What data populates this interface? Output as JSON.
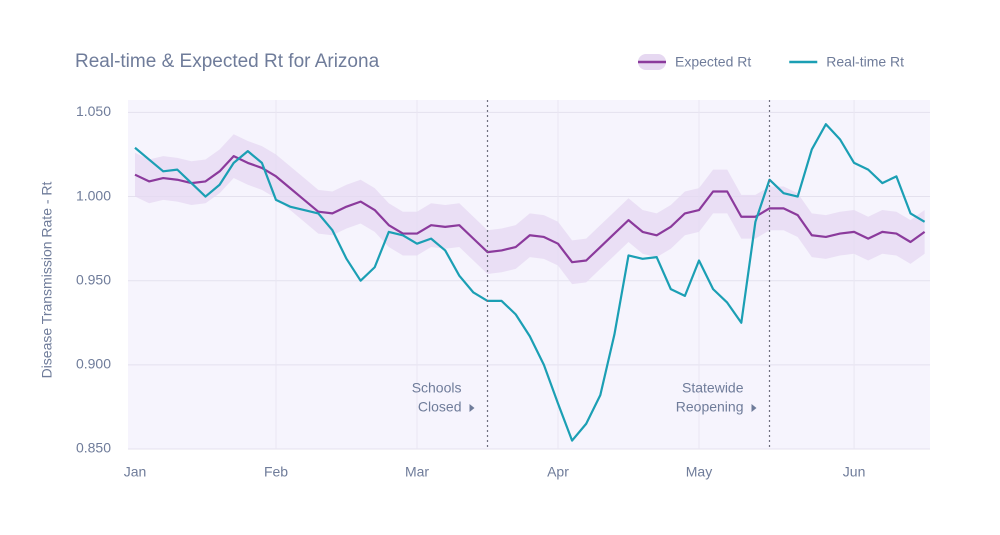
{
  "chart_data": {
    "type": "line",
    "title": "Real-time & Expected Rt for Arizona",
    "y_label": "Disease Transmission Rate - Rt",
    "categories": [
      "Jan",
      null,
      null,
      null,
      null,
      null,
      null,
      null,
      null,
      null,
      "Feb",
      null,
      null,
      null,
      null,
      null,
      null,
      null,
      null,
      null,
      "Mar",
      null,
      null,
      null,
      null,
      null,
      null,
      null,
      null,
      null,
      "Apr",
      null,
      null,
      null,
      null,
      null,
      null,
      null,
      null,
      null,
      "May",
      null,
      null,
      null,
      null,
      null,
      null,
      null,
      null,
      null,
      null,
      "Jun",
      null,
      null,
      null,
      null,
      null
    ],
    "series": [
      {
        "name": "Expected Rt",
        "color": "#8b3a9c",
        "band_color": "#e6d8f1",
        "values": [
          1.013,
          1.009,
          1.011,
          1.01,
          1.008,
          1.009,
          1.015,
          1.024,
          1.02,
          1.017,
          1.012,
          1.005,
          0.998,
          0.991,
          0.99,
          0.994,
          0.997,
          0.992,
          0.983,
          0.978,
          0.978,
          0.983,
          0.982,
          0.983,
          0.975,
          0.967,
          0.968,
          0.97,
          0.977,
          0.976,
          0.972,
          0.961,
          0.962,
          0.97,
          0.978,
          0.986,
          0.979,
          0.977,
          0.982,
          0.99,
          0.992,
          1.003,
          1.003,
          0.988,
          0.988,
          0.993,
          0.993,
          0.989,
          0.977,
          0.976,
          0.978,
          0.979,
          0.975,
          0.979,
          0.978,
          0.973,
          0.979
        ],
        "upper": [
          1.026,
          1.022,
          1.024,
          1.023,
          1.021,
          1.022,
          1.028,
          1.037,
          1.033,
          1.03,
          1.025,
          1.018,
          1.011,
          1.004,
          1.003,
          1.007,
          1.01,
          1.005,
          0.996,
          0.991,
          0.991,
          0.996,
          0.995,
          0.996,
          0.988,
          0.98,
          0.981,
          0.983,
          0.99,
          0.989,
          0.985,
          0.974,
          0.975,
          0.983,
          0.991,
          0.999,
          0.992,
          0.99,
          0.995,
          1.003,
          1.005,
          1.016,
          1.016,
          1.001,
          1.001,
          1.006,
          1.006,
          1.002,
          0.99,
          0.989,
          0.991,
          0.992,
          0.988,
          0.992,
          0.991,
          0.986,
          0.992
        ],
        "lower": [
          1.0,
          0.996,
          0.998,
          0.997,
          0.995,
          0.996,
          1.002,
          1.011,
          1.007,
          1.004,
          0.999,
          0.992,
          0.985,
          0.978,
          0.977,
          0.981,
          0.984,
          0.979,
          0.97,
          0.965,
          0.965,
          0.97,
          0.969,
          0.97,
          0.962,
          0.954,
          0.955,
          0.957,
          0.964,
          0.963,
          0.959,
          0.948,
          0.949,
          0.957,
          0.965,
          0.973,
          0.966,
          0.964,
          0.969,
          0.977,
          0.979,
          0.99,
          0.99,
          0.975,
          0.975,
          0.98,
          0.98,
          0.976,
          0.964,
          0.963,
          0.965,
          0.966,
          0.962,
          0.966,
          0.965,
          0.96,
          0.966
        ]
      },
      {
        "name": "Real-time Rt",
        "color": "#1b9fb4",
        "values": [
          1.029,
          1.022,
          1.015,
          1.016,
          1.008,
          1.0,
          1.007,
          1.02,
          1.027,
          1.02,
          0.998,
          0.994,
          0.992,
          0.99,
          0.98,
          0.963,
          0.95,
          0.958,
          0.979,
          0.977,
          0.972,
          0.975,
          0.968,
          0.953,
          0.943,
          0.938,
          0.938,
          0.93,
          0.917,
          0.9,
          0.877,
          0.855,
          0.865,
          0.882,
          0.918,
          0.965,
          0.963,
          0.964,
          0.945,
          0.941,
          0.962,
          0.945,
          0.937,
          0.925,
          0.985,
          1.01,
          1.002,
          1.0,
          1.028,
          1.043,
          1.034,
          1.02,
          1.016,
          1.008,
          1.012,
          0.99,
          0.985
        ]
      }
    ],
    "annotations": [
      {
        "lines": [
          "Schools",
          "Closed"
        ],
        "at_index": 25
      },
      {
        "lines": [
          "Statewide",
          "Reopening"
        ],
        "at_index": 45
      }
    ],
    "ylim": [
      0.85,
      1.055
    ],
    "yticks": [
      {
        "value": 0.85,
        "label": "0.850"
      },
      {
        "value": 0.9,
        "label": "0.900"
      },
      {
        "value": 0.95,
        "label": "0.950"
      },
      {
        "value": 1.0,
        "label": "1.000"
      },
      {
        "value": 1.05,
        "label": "1.050"
      }
    ],
    "grid": true,
    "legend": "top-right",
    "background": "#f6f4fd"
  }
}
